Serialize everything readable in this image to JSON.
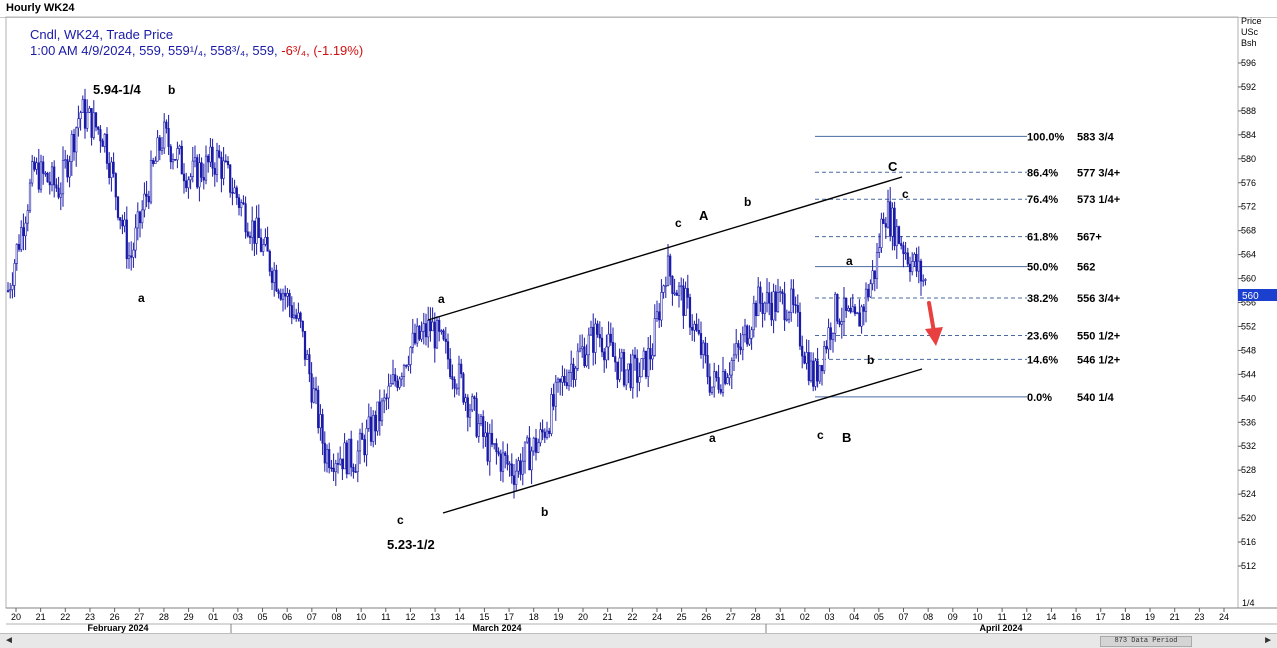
{
  "window": {
    "title": "Hourly WK24"
  },
  "legend": {
    "line1": "Cndl, WK24, Trade Price",
    "line2_main": "1:00 AM 4/9/2024, 559, 559¹/₄, 558³/₄, 559, ",
    "line2_change": "-6³/₄, (-1.19%)"
  },
  "price_axis": {
    "header": [
      "Price",
      "USc",
      "Bsh"
    ],
    "current_price_label": "560",
    "zoom_label": "1/4"
  },
  "scrollbar": {
    "thumb_label": "873 Data Period",
    "left_arrow": "◄",
    "right_arrow": "►"
  },
  "colors": {
    "candles": "#1a1aa8",
    "fib_lines": "#4a6aa0",
    "price_tag": "#1b3fcf",
    "arrow": "#e84040",
    "channel": "#000000"
  },
  "chart_data": {
    "type": "candlestick",
    "title": "",
    "xlabel": "",
    "ylabel": "",
    "ylim": [
      510,
      600
    ],
    "y_ticks": [
      512,
      516,
      520,
      524,
      528,
      532,
      536,
      540,
      544,
      548,
      552,
      556,
      560,
      564,
      568,
      572,
      576,
      580,
      584,
      588,
      592,
      596
    ],
    "x_ticks": [
      "20",
      "21",
      "22",
      "23",
      "26",
      "27",
      "28",
      "29",
      "01",
      "03",
      "05",
      "06",
      "07",
      "08",
      "10",
      "11",
      "12",
      "13",
      "14",
      "15",
      "17",
      "18",
      "19",
      "20",
      "21",
      "22",
      "24",
      "25",
      "26",
      "27",
      "28",
      "31",
      "02",
      "03",
      "04",
      "05",
      "07",
      "08",
      "09",
      "10",
      "11",
      "12",
      "14",
      "16",
      "17",
      "18",
      "19",
      "21",
      "23",
      "24"
    ],
    "months": [
      "February 2024",
      "March 2024",
      "April 2024"
    ],
    "series": [
      {
        "x": [
          "02-19",
          "02-20",
          "02-21",
          "02-22",
          "02-23",
          "02-26",
          "02-27",
          "02-28",
          "02-29",
          "03-01",
          "03-03",
          "03-05",
          "03-06",
          "03-07",
          "03-08",
          "03-10",
          "03-11",
          "03-12",
          "03-13",
          "03-14",
          "03-15",
          "03-17",
          "03-18",
          "03-19",
          "03-20",
          "03-21",
          "03-22",
          "03-24",
          "03-25",
          "03-26",
          "03-27",
          "03-28",
          "03-31",
          "04-02",
          "04-03",
          "04-04",
          "04-05",
          "04-07",
          "04-08",
          "04-09"
        ],
        "values": [
          558,
          578,
          575,
          588,
          584,
          563,
          575,
          584,
          577,
          580,
          571,
          562,
          552,
          531,
          530,
          538,
          548,
          552,
          543,
          532,
          528,
          533,
          545,
          551,
          545,
          544,
          548,
          562,
          554,
          542,
          548,
          556,
          556,
          543,
          555,
          552,
          562,
          572,
          564,
          559
        ]
      }
    ],
    "fibonacci": [
      {
        "label": "100.0%",
        "value": "583 3/4",
        "price": 583.75
      },
      {
        "label": "86.4%",
        "value": "577 3/4+",
        "price": 577.75
      },
      {
        "label": "76.4%",
        "value": "573 1/4+",
        "price": 573.25
      },
      {
        "label": "61.8%",
        "value": "567+",
        "price": 567
      },
      {
        "label": "50.0%",
        "value": "562",
        "price": 562
      },
      {
        "label": "38.2%",
        "value": "556 3/4+",
        "price": 556.75
      },
      {
        "label": "23.6%",
        "value": "550 1/2+",
        "price": 550.5
      },
      {
        "label": "14.6%",
        "value": "546 1/2+",
        "price": 546.5
      },
      {
        "label": "0.0%",
        "value": "540 1/4",
        "price": 540.25
      }
    ],
    "annotations": [
      {
        "text": "5.94-1/4",
        "x": "02-22",
        "y": 594.25
      },
      {
        "text": "b",
        "x": "02-27",
        "y": 593
      },
      {
        "text": "a",
        "x": "02-26",
        "y": 558
      },
      {
        "text": "c",
        "x": "03-11",
        "y": 522
      },
      {
        "text": "5.23-1/2",
        "x": "03-11",
        "y": 518
      },
      {
        "text": "a",
        "x": "03-12",
        "y": 557
      },
      {
        "text": "b",
        "x": "03-17",
        "y": 524
      },
      {
        "text": "c",
        "x": "03-24",
        "y": 571
      },
      {
        "text": "A",
        "x": "03-25",
        "y": 572
      },
      {
        "text": "b",
        "x": "03-28",
        "y": 574
      },
      {
        "text": "a",
        "x": "03-27",
        "y": 538
      },
      {
        "text": "c",
        "x": "04-02",
        "y": 538
      },
      {
        "text": "B",
        "x": "04-03",
        "y": 538
      },
      {
        "text": "a",
        "x": "04-04",
        "y": 565
      },
      {
        "text": "b",
        "x": "04-04",
        "y": 548
      },
      {
        "text": "C",
        "x": "04-07",
        "y": 581
      },
      {
        "text": "c",
        "x": "04-07",
        "y": 577
      }
    ]
  }
}
